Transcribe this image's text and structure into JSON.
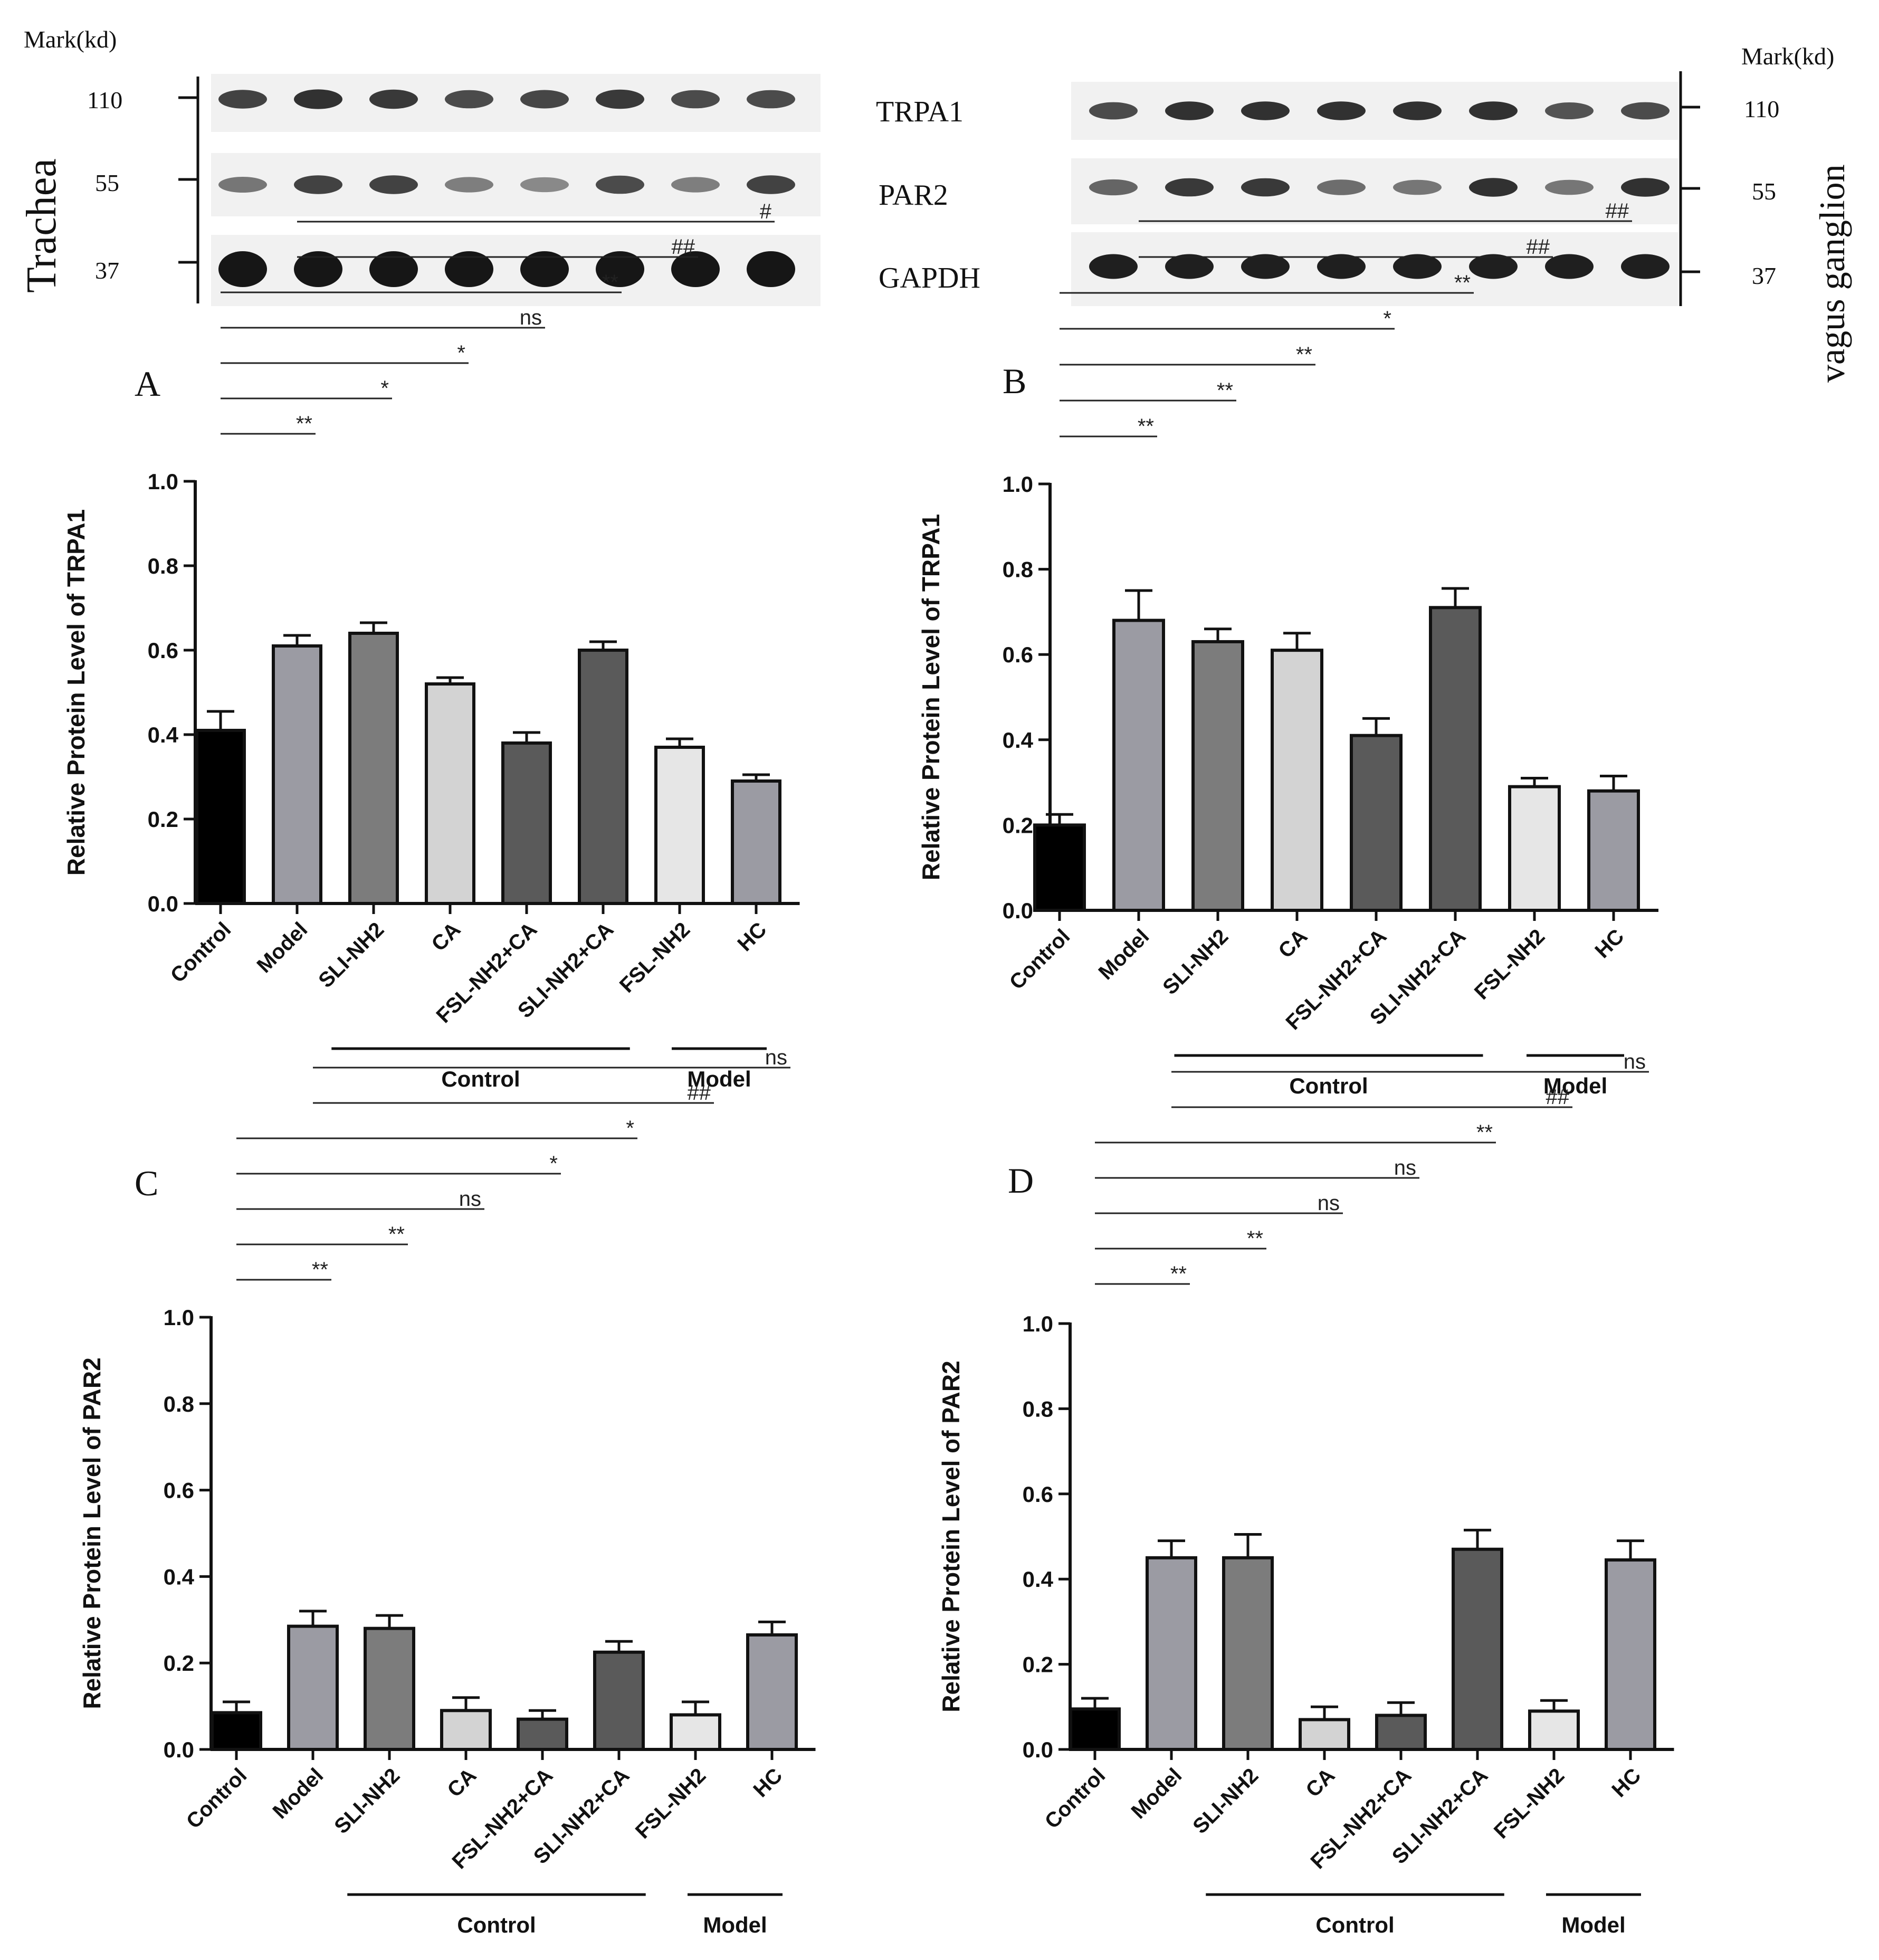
{
  "blots": {
    "mark_label_left": "Mark(kd)",
    "mark_label_right": "Mark(kd)",
    "tissue_left": "Trachea",
    "tissue_right": "vagus ganglion",
    "left_markers": [
      "110",
      "55",
      "37"
    ],
    "right_markers": [
      "110",
      "55",
      "37"
    ],
    "proteins": [
      "TRPA1",
      "PAR2",
      "GAPDH"
    ],
    "band_intensity_left": [
      [
        0.75,
        0.85,
        0.8,
        0.7,
        0.72,
        0.8,
        0.7,
        0.7
      ],
      [
        0.45,
        0.75,
        0.75,
        0.4,
        0.35,
        0.7,
        0.4,
        0.75
      ],
      [
        1.0,
        1.0,
        1.0,
        1.0,
        1.0,
        1.0,
        1.0,
        1.0
      ]
    ],
    "band_intensity_right": [
      [
        0.7,
        0.85,
        0.85,
        0.85,
        0.85,
        0.85,
        0.65,
        0.7
      ],
      [
        0.55,
        0.8,
        0.8,
        0.5,
        0.45,
        0.85,
        0.45,
        0.85
      ],
      [
        0.95,
        0.95,
        0.95,
        0.95,
        0.95,
        0.95,
        0.95,
        0.95
      ]
    ]
  },
  "chart_data": [
    {
      "panel": "A",
      "type": "bar",
      "ylabel": "Relative Protein Level of TRPA1",
      "ylim": [
        0,
        1.0
      ],
      "yticks": [
        "0.0",
        "0.2",
        "0.4",
        "0.6",
        "0.8",
        "1.0"
      ],
      "categories": [
        "Control",
        "Model",
        "SLI-NH2",
        "CA",
        "FSL-NH2+CA",
        "SLI-NH2+CA",
        "FSL-NH2",
        "HC"
      ],
      "values": [
        0.41,
        0.61,
        0.64,
        0.52,
        0.38,
        0.6,
        0.37,
        0.29
      ],
      "errors": [
        0.045,
        0.025,
        0.025,
        0.015,
        0.025,
        0.02,
        0.02,
        0.015
      ],
      "colors": [
        "#000000",
        "#9b9ba3",
        "#7c7c7c",
        "#d3d3d3",
        "#5a5a5a",
        "#5a5a5a",
        "#e6e6e6",
        "#9b9ba3"
      ],
      "groups": [
        {
          "label": "Control",
          "from": 2,
          "to": 5
        },
        {
          "label": "Model",
          "from": 6,
          "to": 7
        }
      ],
      "brackets": [
        {
          "from": 1,
          "to": 7,
          "label": "#"
        },
        {
          "from": 1,
          "to": 6,
          "label": "##"
        },
        {
          "from": 0,
          "to": 5,
          "label": "**"
        },
        {
          "from": 0,
          "to": 4,
          "label": "ns"
        },
        {
          "from": 0,
          "to": 3,
          "label": "*"
        },
        {
          "from": 0,
          "to": 2,
          "label": "*"
        },
        {
          "from": 0,
          "to": 1,
          "label": "**"
        }
      ]
    },
    {
      "panel": "B",
      "type": "bar",
      "ylabel": "Relative Protein Level of TRPA1",
      "ylim": [
        0,
        1.0
      ],
      "yticks": [
        "0.0",
        "0.2",
        "0.4",
        "0.6",
        "0.8",
        "1.0"
      ],
      "categories": [
        "Control",
        "Model",
        "SLI-NH2",
        "CA",
        "FSL-NH2+CA",
        "SLI-NH2+CA",
        "FSL-NH2",
        "HC"
      ],
      "values": [
        0.2,
        0.68,
        0.63,
        0.61,
        0.41,
        0.71,
        0.29,
        0.28
      ],
      "errors": [
        0.025,
        0.07,
        0.03,
        0.04,
        0.04,
        0.045,
        0.02,
        0.035
      ],
      "colors": [
        "#000000",
        "#9b9ba3",
        "#7c7c7c",
        "#d3d3d3",
        "#5a5a5a",
        "#5a5a5a",
        "#e6e6e6",
        "#9b9ba3"
      ],
      "groups": [
        {
          "label": "Control",
          "from": 2,
          "to": 5
        },
        {
          "label": "Model",
          "from": 6,
          "to": 7
        }
      ],
      "brackets": [
        {
          "from": 1,
          "to": 7,
          "label": "##"
        },
        {
          "from": 1,
          "to": 6,
          "label": "##"
        },
        {
          "from": 0,
          "to": 5,
          "label": "**"
        },
        {
          "from": 0,
          "to": 4,
          "label": "*"
        },
        {
          "from": 0,
          "to": 3,
          "label": "**"
        },
        {
          "from": 0,
          "to": 2,
          "label": "**"
        },
        {
          "from": 0,
          "to": 1,
          "label": "**"
        }
      ]
    },
    {
      "panel": "C",
      "type": "bar",
      "ylabel": "Relative Protein Level of PAR2",
      "ylim": [
        0,
        1.0
      ],
      "yticks": [
        "0.0",
        "0.2",
        "0.4",
        "0.6",
        "0.8",
        "1.0"
      ],
      "categories": [
        "Control",
        "Model",
        "SLI-NH2",
        "CA",
        "FSL-NH2+CA",
        "SLI-NH2+CA",
        "FSL-NH2",
        "HC"
      ],
      "values": [
        0.085,
        0.285,
        0.28,
        0.09,
        0.07,
        0.225,
        0.08,
        0.265
      ],
      "errors": [
        0.025,
        0.035,
        0.03,
        0.03,
        0.02,
        0.025,
        0.03,
        0.03
      ],
      "colors": [
        "#000000",
        "#9b9ba3",
        "#7c7c7c",
        "#d3d3d3",
        "#5a5a5a",
        "#5a5a5a",
        "#e6e6e6",
        "#9b9ba3"
      ],
      "groups": [
        {
          "label": "Control",
          "from": 2,
          "to": 5
        },
        {
          "label": "Model",
          "from": 6,
          "to": 7
        }
      ],
      "brackets": [
        {
          "from": 1,
          "to": 7,
          "label": "ns"
        },
        {
          "from": 1,
          "to": 6,
          "label": "##"
        },
        {
          "from": 0,
          "to": 5,
          "label": "*"
        },
        {
          "from": 0,
          "to": 4,
          "label": "*"
        },
        {
          "from": 0,
          "to": 3,
          "label": "ns"
        },
        {
          "from": 0,
          "to": 2,
          "label": "**"
        },
        {
          "from": 0,
          "to": 1,
          "label": "**"
        }
      ]
    },
    {
      "panel": "D",
      "type": "bar",
      "ylabel": "Relative Protein Level of PAR2",
      "ylim": [
        0,
        1.0
      ],
      "yticks": [
        "0.0",
        "0.2",
        "0.4",
        "0.6",
        "0.8",
        "1.0"
      ],
      "categories": [
        "Control",
        "Model",
        "SLI-NH2",
        "CA",
        "FSL-NH2+CA",
        "SLI-NH2+CA",
        "FSL-NH2",
        "HC"
      ],
      "values": [
        0.095,
        0.45,
        0.45,
        0.07,
        0.08,
        0.47,
        0.09,
        0.445
      ],
      "errors": [
        0.025,
        0.04,
        0.055,
        0.03,
        0.03,
        0.045,
        0.025,
        0.045
      ],
      "colors": [
        "#000000",
        "#9b9ba3",
        "#7c7c7c",
        "#d3d3d3",
        "#5a5a5a",
        "#5a5a5a",
        "#e6e6e6",
        "#9b9ba3"
      ],
      "groups": [
        {
          "label": "Control",
          "from": 2,
          "to": 5
        },
        {
          "label": "Model",
          "from": 6,
          "to": 7
        }
      ],
      "brackets": [
        {
          "from": 1,
          "to": 7,
          "label": "ns"
        },
        {
          "from": 1,
          "to": 6,
          "label": "##"
        },
        {
          "from": 0,
          "to": 5,
          "label": "**"
        },
        {
          "from": 0,
          "to": 4,
          "label": "ns"
        },
        {
          "from": 0,
          "to": 3,
          "label": "ns"
        },
        {
          "from": 0,
          "to": 2,
          "label": "**"
        },
        {
          "from": 0,
          "to": 1,
          "label": "**"
        }
      ]
    }
  ]
}
